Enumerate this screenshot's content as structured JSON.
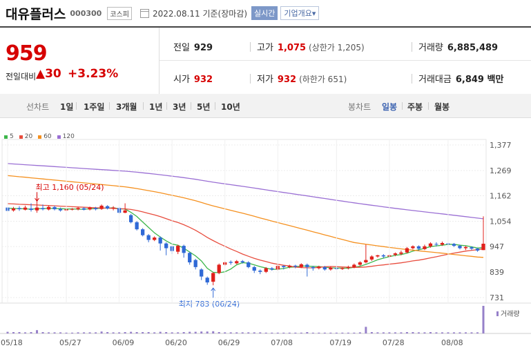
{
  "header": {
    "name": "대유플러스",
    "code": "000300",
    "market": "코스피",
    "date": "2022.08.11 기준(장마감)",
    "realtime_btn": "실시간",
    "company_btn": "기업개요▾"
  },
  "summary": {
    "price": "959",
    "change_label": "전일대비",
    "change_value": "▲30",
    "change_pct": "+3.23%",
    "prev_label": "전일",
    "prev_value": "929",
    "high_label": "고가",
    "high_value": "1,075",
    "upper_limit": "(상한가 1,205)",
    "volume_label": "거래량",
    "volume_value": "6,885,489",
    "open_label": "시가",
    "open_value": "932",
    "low_label": "저가",
    "low_value": "932",
    "lower_limit": "(하한가 651)",
    "amount_label": "거래대금",
    "amount_value": "6,849 백만"
  },
  "toolbar": {
    "line_label": "선차트",
    "line_periods": [
      "1일",
      "1주일",
      "3개월",
      "1년",
      "3년",
      "5년",
      "10년"
    ],
    "candle_label": "봉차트",
    "candle_periods": [
      "일봉",
      "주봉",
      "월봉"
    ],
    "candle_selected": "일봉"
  },
  "chart_data": {
    "type": "candlestick",
    "legend": [
      {
        "name": "5",
        "color": "#3cb64a"
      },
      {
        "name": "20",
        "color": "#e84c3d"
      },
      {
        "name": "60",
        "color": "#f5901e"
      },
      {
        "name": "120",
        "color": "#9a6fd4"
      }
    ],
    "y_ticks": [
      1377,
      1269,
      1162,
      1054,
      947,
      839,
      731
    ],
    "ylim": [
      731,
      1377
    ],
    "x_ticks": [
      "05/18",
      "05/27",
      "06/09",
      "06/20",
      "06/29",
      "07/08",
      "07/19",
      "07/28",
      "08/08"
    ],
    "annotation_high": "최고 1,160 (05/24)",
    "annotation_low": "최저 783 (06/24)",
    "volume_label": "거래량",
    "candles": [
      [
        1112,
        1098,
        1120,
        1090
      ],
      [
        1100,
        1108,
        1115,
        1095
      ],
      [
        1110,
        1105,
        1118,
        1098
      ],
      [
        1103,
        1112,
        1120,
        1100
      ],
      [
        1108,
        1102,
        1130,
        1095
      ],
      [
        1100,
        1112,
        1160,
        1090
      ],
      [
        1110,
        1105,
        1125,
        1100
      ],
      [
        1104,
        1115,
        1120,
        1100
      ],
      [
        1114,
        1105,
        1120,
        1100
      ],
      [
        1106,
        1100,
        1112,
        1095
      ],
      [
        1100,
        1105,
        1108,
        1095
      ],
      [
        1104,
        1106,
        1110,
        1100
      ],
      [
        1105,
        1110,
        1115,
        1100
      ],
      [
        1109,
        1103,
        1114,
        1100
      ],
      [
        1104,
        1112,
        1116,
        1100
      ],
      [
        1110,
        1105,
        1115,
        1100
      ],
      [
        1106,
        1120,
        1125,
        1102
      ],
      [
        1118,
        1108,
        1122,
        1104
      ],
      [
        1108,
        1112,
        1118,
        1100
      ],
      [
        1110,
        1090,
        1114,
        1085
      ],
      [
        1090,
        1100,
        1130,
        1088
      ],
      [
        1080,
        1050,
        1085,
        1045
      ],
      [
        1050,
        1020,
        1055,
        1015
      ],
      [
        1020,
        995,
        1025,
        990
      ],
      [
        995,
        975,
        1000,
        965
      ],
      [
        975,
        985,
        990,
        970
      ],
      [
        985,
        960,
        990,
        930
      ],
      [
        960,
        940,
        965,
        910
      ],
      [
        948,
        928,
        950,
        915
      ],
      [
        925,
        950,
        955,
        915
      ],
      [
        950,
        920,
        955,
        900
      ],
      [
        920,
        880,
        925,
        870
      ],
      [
        890,
        860,
        895,
        850
      ],
      [
        850,
        820,
        855,
        805
      ],
      [
        815,
        795,
        820,
        785
      ],
      [
        798,
        835,
        838,
        783
      ],
      [
        835,
        870,
        875,
        830
      ],
      [
        870,
        880,
        885,
        865
      ],
      [
        882,
        878,
        888,
        870
      ],
      [
        876,
        885,
        890,
        872
      ],
      [
        885,
        880,
        890,
        875
      ],
      [
        880,
        860,
        885,
        855
      ],
      [
        860,
        845,
        865,
        835
      ],
      [
        845,
        840,
        850,
        830
      ],
      [
        840,
        855,
        860,
        835
      ],
      [
        855,
        850,
        860,
        845
      ],
      [
        850,
        865,
        870,
        845
      ],
      [
        865,
        860,
        868,
        850
      ],
      [
        860,
        866,
        870,
        855
      ],
      [
        866,
        862,
        870,
        855
      ],
      [
        860,
        872,
        876,
        856
      ],
      [
        870,
        860,
        875,
        820
      ],
      [
        860,
        855,
        865,
        845
      ],
      [
        855,
        862,
        866,
        850
      ],
      [
        860,
        850,
        865,
        845
      ],
      [
        850,
        858,
        862,
        845
      ],
      [
        856,
        852,
        862,
        848
      ],
      [
        852,
        856,
        858,
        848
      ],
      [
        856,
        860,
        866,
        850
      ],
      [
        858,
        870,
        875,
        855
      ],
      [
        870,
        880,
        885,
        865
      ],
      [
        880,
        890,
        955,
        876
      ],
      [
        892,
        905,
        910,
        886
      ],
      [
        905,
        910,
        912,
        900
      ],
      [
        910,
        905,
        915,
        898
      ],
      [
        905,
        910,
        914,
        900
      ],
      [
        912,
        918,
        922,
        906
      ],
      [
        916,
        922,
        930,
        910
      ],
      [
        922,
        940,
        945,
        918
      ],
      [
        940,
        948,
        952,
        935
      ],
      [
        948,
        938,
        952,
        930
      ],
      [
        936,
        948,
        955,
        932
      ],
      [
        948,
        960,
        965,
        942
      ],
      [
        958,
        955,
        965,
        948
      ],
      [
        955,
        962,
        968,
        950
      ],
      [
        960,
        956,
        965,
        950
      ],
      [
        958,
        950,
        962,
        945
      ],
      [
        950,
        940,
        955,
        935
      ],
      [
        940,
        945,
        950,
        932
      ],
      [
        944,
        938,
        948,
        932
      ],
      [
        938,
        930,
        942,
        925
      ],
      [
        932,
        959,
        1075,
        932
      ]
    ],
    "volumes": [
      6,
      5,
      5,
      4,
      5,
      12,
      5,
      4,
      4,
      4,
      3,
      3,
      4,
      4,
      4,
      4,
      7,
      5,
      4,
      4,
      5,
      6,
      5,
      5,
      5,
      4,
      6,
      5,
      4,
      4,
      5,
      6,
      6,
      7,
      7,
      8,
      5,
      4,
      4,
      4,
      4,
      4,
      4,
      4,
      3,
      3,
      3,
      3,
      3,
      3,
      3,
      5,
      3,
      3,
      3,
      3,
      3,
      3,
      3,
      3,
      4,
      24,
      5,
      4,
      4,
      4,
      4,
      4,
      5,
      5,
      4,
      4,
      5,
      4,
      4,
      4,
      4,
      4,
      4,
      4,
      4,
      100
    ]
  }
}
